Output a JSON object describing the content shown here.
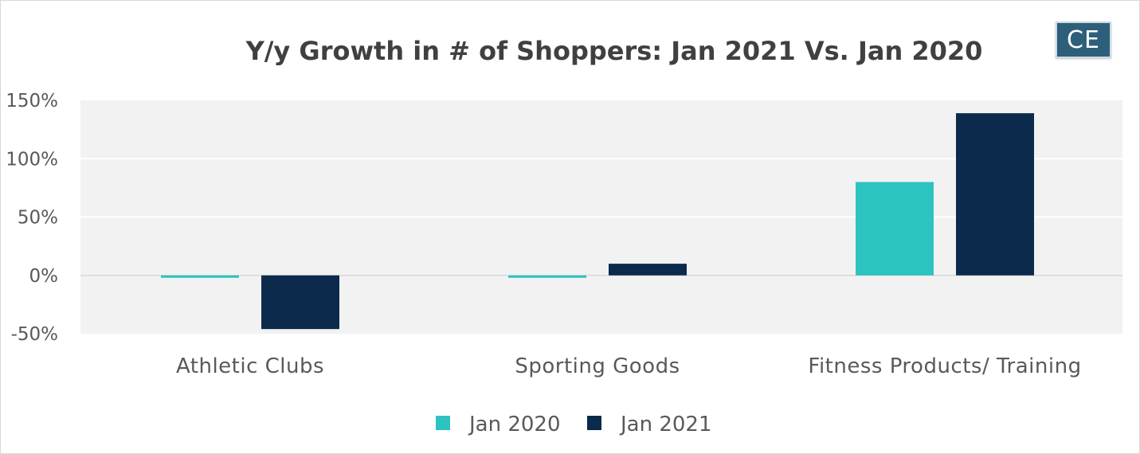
{
  "logo_text": "CE",
  "colors": {
    "jan2020": "#2cc3c0",
    "jan2021": "#0c2b4c",
    "plot_bg": "#f2f2f2",
    "grid": "#ffffff",
    "zero_line": "#d9d9d9"
  },
  "chart_data": {
    "type": "bar",
    "title": "Y/y Growth in # of Shoppers: Jan 2021 Vs. Jan 2020",
    "xlabel": "",
    "ylabel": "",
    "categories": [
      "Athletic Clubs",
      "Sporting Goods",
      "Fitness Products/ Training"
    ],
    "series": [
      {
        "name": "Jan 2020",
        "values": [
          -2,
          -2,
          80
        ]
      },
      {
        "name": "Jan 2021",
        "values": [
          -46,
          10,
          139
        ]
      }
    ],
    "ylim": [
      -50,
      150
    ],
    "yticks": [
      {
        "value": 150,
        "label": "150%"
      },
      {
        "value": 100,
        "label": "100%"
      },
      {
        "value": 50,
        "label": "50%"
      },
      {
        "value": 0,
        "label": "0%"
      },
      {
        "value": -50,
        "label": "-50%"
      }
    ],
    "grid": true,
    "legend_position": "bottom"
  }
}
